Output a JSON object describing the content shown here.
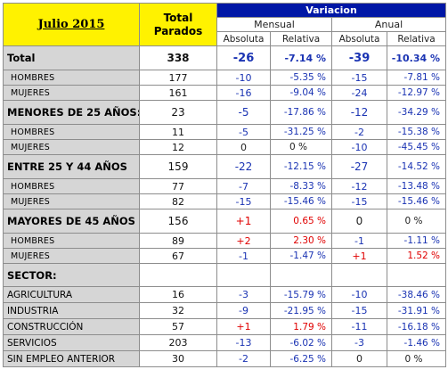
{
  "header": {
    "title": "Julio 2015",
    "total_line1": "Total",
    "total_line2": "Parados",
    "variacion": "Variacion",
    "mensual": "Mensual",
    "anual": "Anual",
    "absoluta": "Absoluta",
    "relativa": "Relativa"
  },
  "total": {
    "label": "Total",
    "value": "338",
    "m_abs": "-26",
    "m_rel": "-7.14 %",
    "a_abs": "-39",
    "a_rel": "-10.34 %"
  },
  "groups": {
    "sexo": {
      "rows": [
        {
          "label": "HOMBRES",
          "value": "177",
          "m_abs": "-10",
          "m_rel": "-5.35 %",
          "a_abs": "-15",
          "a_rel": "-7.81 %"
        },
        {
          "label": "MUJERES",
          "value": "161",
          "m_abs": "-16",
          "m_rel": "-9.04 %",
          "a_abs": "-24",
          "a_rel": "-12.97 %"
        }
      ]
    },
    "menores25": {
      "label": "MENORES DE 25 AÑOS:",
      "value": "23",
      "m_abs": "-5",
      "m_rel": "-17.86 %",
      "a_abs": "-12",
      "a_rel": "-34.29 %",
      "rows": [
        {
          "label": "HOMBRES",
          "value": "11",
          "m_abs": "-5",
          "m_rel": "-31.25 %",
          "a_abs": "-2",
          "a_rel": "-15.38 %"
        },
        {
          "label": "MUJERES",
          "value": "12",
          "m_abs": "0",
          "m_rel": "0 %",
          "a_abs": "-10",
          "a_rel": "-45.45 %"
        }
      ]
    },
    "entre25y44": {
      "label": "ENTRE 25 Y 44 AÑOS",
      "value": "159",
      "m_abs": "-22",
      "m_rel": "-12.15 %",
      "a_abs": "-27",
      "a_rel": "-14.52 %",
      "rows": [
        {
          "label": "HOMBRES",
          "value": "77",
          "m_abs": "-7",
          "m_rel": "-8.33 %",
          "a_abs": "-12",
          "a_rel": "-13.48 %"
        },
        {
          "label": "MUJERES",
          "value": "82",
          "m_abs": "-15",
          "m_rel": "-15.46 %",
          "a_abs": "-15",
          "a_rel": "-15.46 %"
        }
      ]
    },
    "mayores45": {
      "label": "MAYORES DE 45 AÑOS",
      "value": "156",
      "m_abs": "+1",
      "m_rel": "0.65 %",
      "a_abs": "0",
      "a_rel": "0 %",
      "rows": [
        {
          "label": "HOMBRES",
          "value": "89",
          "m_abs": "+2",
          "m_rel": "2.30 %",
          "a_abs": "-1",
          "a_rel": "-1.11 %"
        },
        {
          "label": "MUJERES",
          "value": "67",
          "m_abs": "-1",
          "m_rel": "-1.47 %",
          "a_abs": "+1",
          "a_rel": "1.52 %"
        }
      ]
    },
    "sector": {
      "label": "SECTOR:",
      "rows": [
        {
          "label": "AGRICULTURA",
          "value": "16",
          "m_abs": "-3",
          "m_rel": "-15.79 %",
          "a_abs": "-10",
          "a_rel": "-38.46 %"
        },
        {
          "label": "INDUSTRIA",
          "value": "32",
          "m_abs": "-9",
          "m_rel": "-21.95 %",
          "a_abs": "-15",
          "a_rel": "-31.91 %"
        },
        {
          "label": "CONSTRUCCIÓN",
          "value": "57",
          "m_abs": "+1",
          "m_rel": "1.79 %",
          "a_abs": "-11",
          "a_rel": "-16.18 %"
        },
        {
          "label": "SERVICIOS",
          "value": "203",
          "m_abs": "-13",
          "m_rel": "-6.02 %",
          "a_abs": "-3",
          "a_rel": "-1.46 %"
        },
        {
          "label": "SIN EMPLEO ANTERIOR",
          "value": "30",
          "m_abs": "-2",
          "m_rel": "-6.25 %",
          "a_abs": "0",
          "a_rel": "0 %"
        }
      ]
    }
  },
  "colors": {
    "header_yellow": "#fff200",
    "variacion_blue": "#0017a6",
    "label_gray": "#d6d6d6",
    "value_blue": "#1a33b3",
    "positive_red": "#e00000"
  }
}
